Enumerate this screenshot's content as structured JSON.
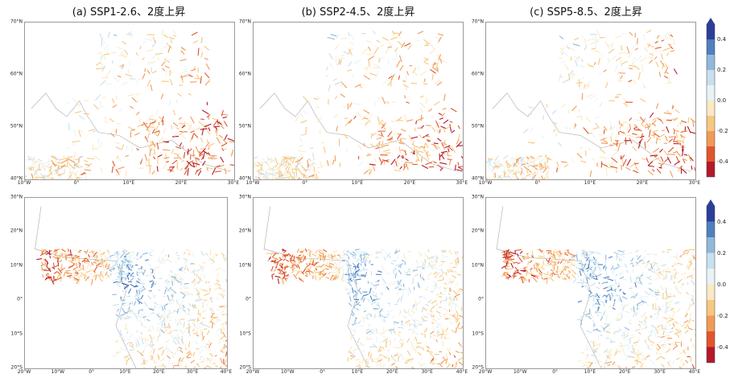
{
  "titles": {
    "a": "(a) SSP1-2.6、2度上昇",
    "b": "(b) SSP2-4.5、2度上昇",
    "c": "(c) SSP5-8.5、2度上昇"
  },
  "europe_axes": {
    "y_labels": [
      "70°N",
      "60°N",
      "50°N",
      "40°N"
    ],
    "x_labels": [
      "10°W",
      "0°",
      "10°E",
      "20°E",
      "30°E"
    ]
  },
  "africa_axes": {
    "y_labels": [
      "30°N",
      "20°N",
      "10°N",
      "0°",
      "10°S",
      "20°S"
    ],
    "x_labels": [
      "20°W",
      "10°W",
      "0°",
      "10°E",
      "20°E",
      "30°E",
      "40°E"
    ]
  },
  "colorbar": {
    "ticks": [
      "0.4",
      "0.2",
      "0.0",
      "-0.2",
      "-0.4"
    ],
    "colors": [
      "#2c3e9a",
      "#4f7fbf",
      "#8fb8db",
      "#c7e0ee",
      "#e8f3f6",
      "#fbe9c4",
      "#f8c77f",
      "#f29a55",
      "#e2552c",
      "#b5182a"
    ]
  }
}
